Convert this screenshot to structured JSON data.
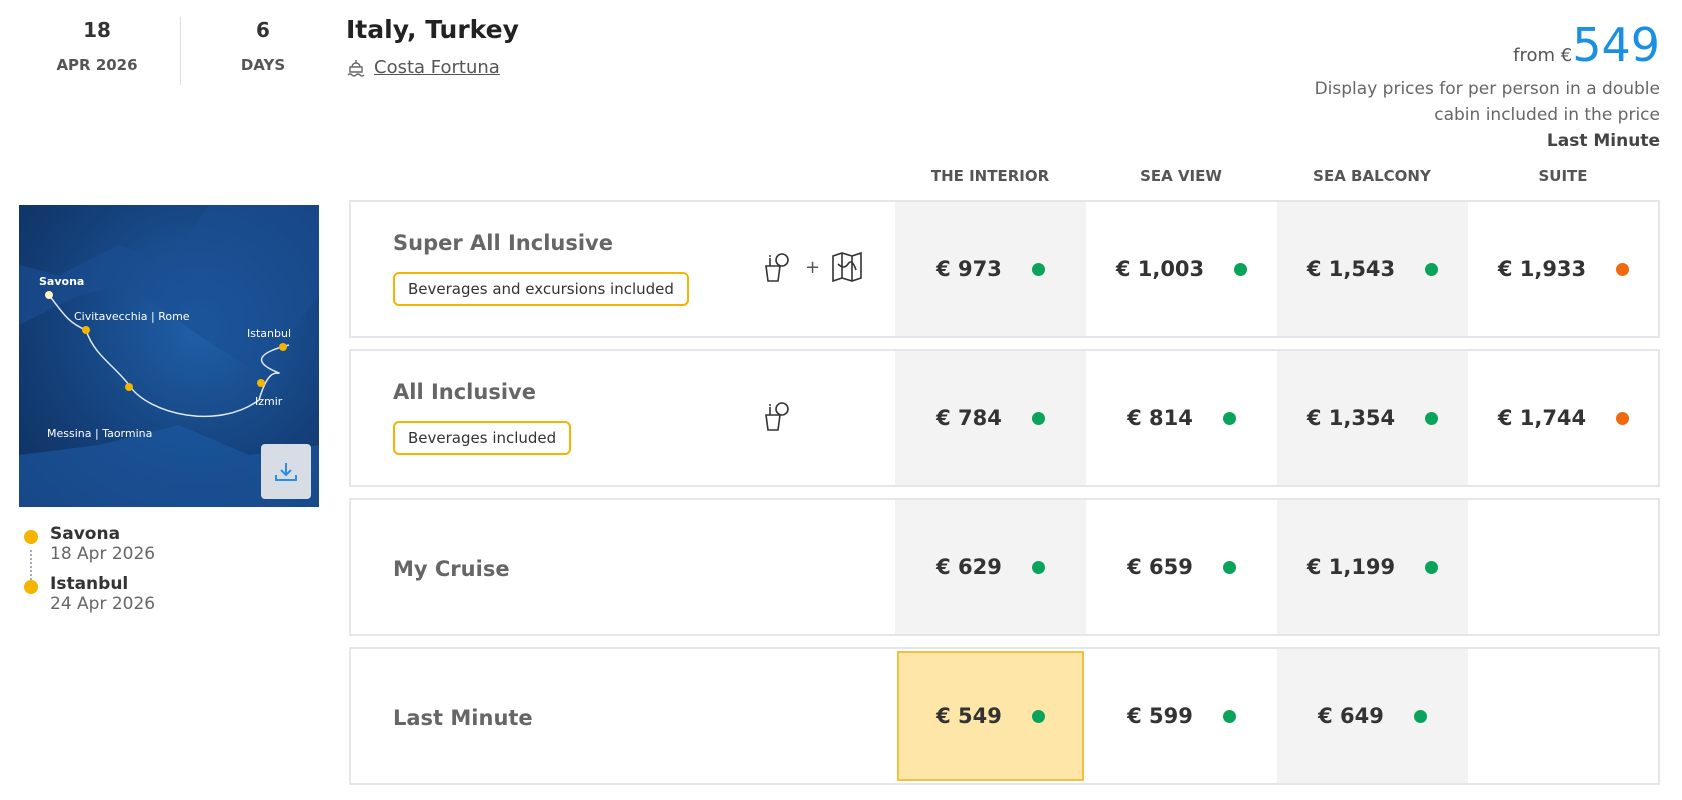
{
  "header": {
    "day": "18",
    "month_year": "APR 2026",
    "duration": "6",
    "duration_unit": "DAYS",
    "destination": "Italy, Turkey",
    "ship": "Costa Fortuna",
    "from_label": "from €",
    "from_price": "549",
    "note": "Display prices for per person in a double cabin included in the price",
    "note_fare": "Last Minute"
  },
  "columns": [
    "THE INTERIOR",
    "SEA VIEW",
    "SEA BALCONY",
    "SUITE"
  ],
  "map": {
    "ports": [
      "Savona",
      "Civitavecchia | Rome",
      "Messina | Taormina",
      "Izmir",
      "Istanbul"
    ]
  },
  "itinerary": [
    {
      "port": "Savona",
      "date": "18 Apr 2026"
    },
    {
      "port": "Istanbul",
      "date": "24 Apr 2026"
    }
  ],
  "colors": {
    "available": "#0aa35a",
    "limited": "#f06a10",
    "accent": "#1a8fe3",
    "highlight": "#fde6a8"
  },
  "fares": [
    {
      "name": "Super All Inclusive",
      "badge": "Beverages and excursions included",
      "icons": [
        "drink-icon",
        "map-icon"
      ],
      "prices": [
        {
          "v": "€  973",
          "s": "available"
        },
        {
          "v": "€  1,003",
          "s": "available"
        },
        {
          "v": "€  1,543",
          "s": "available"
        },
        {
          "v": "€  1,933",
          "s": "limited"
        }
      ]
    },
    {
      "name": "All Inclusive",
      "badge": "Beverages included",
      "icons": [
        "drink-icon"
      ],
      "prices": [
        {
          "v": "€  784",
          "s": "available"
        },
        {
          "v": "€  814",
          "s": "available"
        },
        {
          "v": "€  1,354",
          "s": "available"
        },
        {
          "v": "€  1,744",
          "s": "limited"
        }
      ]
    },
    {
      "name": "My Cruise",
      "prices": [
        {
          "v": "€  629",
          "s": "available"
        },
        {
          "v": "€  659",
          "s": "available"
        },
        {
          "v": "€  1,199",
          "s": "available"
        }
      ]
    },
    {
      "name": "Last Minute",
      "selected_column": 0,
      "prices": [
        {
          "v": "€  549",
          "s": "available"
        },
        {
          "v": "€  599",
          "s": "available"
        },
        {
          "v": "€  649",
          "s": "available"
        }
      ]
    }
  ]
}
